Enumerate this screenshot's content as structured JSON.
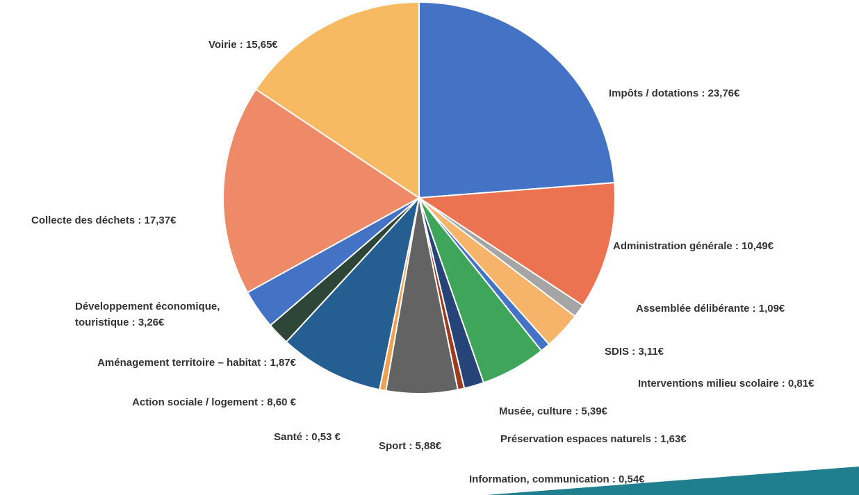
{
  "chart_data": {
    "type": "pie",
    "values": [
      23.76,
      10.49,
      1.09,
      3.11,
      0.81,
      5.39,
      1.63,
      0.54,
      5.88,
      0.53,
      8.6,
      1.87,
      3.26,
      17.37,
      15.65
    ],
    "value_labels": [
      [
        "Impôts / dotations : 23,76€"
      ],
      [
        "Administration générale : 10,49€"
      ],
      [
        "Assemblée délibérante : 1,09€"
      ],
      [
        "SDIS : 3,11€"
      ],
      [
        "Interventions milieu scolaire : 0,81€"
      ],
      [
        "Musée, culture : 5,39€"
      ],
      [
        "Préservation espaces naturels : 1,63€"
      ],
      [
        "Information, communication : 0,54€"
      ],
      [
        "Sport : 5,88€"
      ],
      [
        "Santé : 0,53 €"
      ],
      [
        "Action sociale / logement : 8,60 €"
      ],
      [
        "Aménagement territoire – habitat  : 1,87€"
      ],
      [
        "Développement économique,",
        "touristique : 3,26€"
      ],
      [
        "Collecte des déchets : 17,37€"
      ],
      [
        "Voirie : 15,65€"
      ]
    ],
    "colors": [
      "#4472c4",
      "#ec7352",
      "#a5a5a5",
      "#f6b46a",
      "#4472c4",
      "#3ea55a",
      "#264478",
      "#9e3a1e",
      "#636363",
      "#f0a050",
      "#255e91",
      "#2e4638",
      "#4472c4",
      "#ee8a67",
      "#f7ba62"
    ]
  }
}
